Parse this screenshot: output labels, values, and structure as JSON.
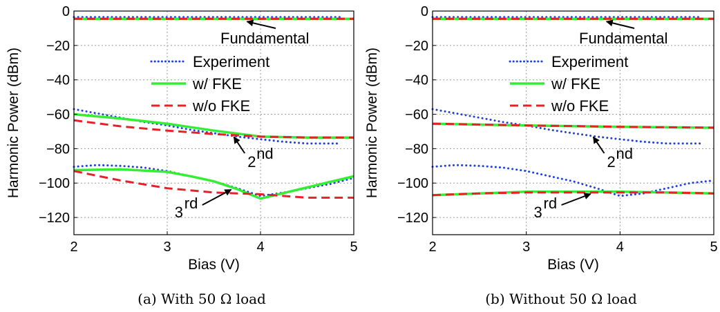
{
  "figure": {
    "panels": [
      {
        "caption": "(a) With 50 Ω load",
        "legend": [
          "Experiment",
          "w/ FKE",
          "w/o FKE"
        ],
        "annotations": {
          "fundamental": "Fundamental",
          "second": "2",
          "second_sup": "nd",
          "third": "3",
          "third_sup": "rd"
        }
      },
      {
        "caption": "(b) Without 50 Ω load",
        "legend": [
          "Experiment",
          "w/ FKE",
          "w/o FKE"
        ],
        "annotations": {
          "fundamental": "Fundamental",
          "second": "2",
          "second_sup": "nd",
          "third": "3",
          "third_sup": "rd"
        }
      }
    ]
  },
  "chart_data": [
    {
      "type": "line",
      "xlabel": "Bias (V)",
      "ylabel": "Harmonic Power (dBm)",
      "xlim": [
        2,
        5
      ],
      "ylim": [
        -130,
        0
      ],
      "xticks": [
        2,
        3,
        4,
        5
      ],
      "yticks": [
        0,
        -20,
        -40,
        -60,
        -80,
        -100,
        -120
      ],
      "ytick_labels": [
        "0",
        "−20",
        "−40",
        "−60",
        "−80",
        "−100",
        "−120"
      ],
      "grid": true,
      "legend_position": "upper-right",
      "series": [
        {
          "name": "Experiment",
          "group": "Fundamental",
          "style": "dotted",
          "color": "#1f3fe0",
          "x": [
            2,
            2.5,
            3,
            3.5,
            4,
            4.5,
            4.85
          ],
          "y": [
            -3.5,
            -3.5,
            -3.5,
            -3.5,
            -3.5,
            -3.5,
            -3.5
          ]
        },
        {
          "name": "w/ FKE",
          "group": "Fundamental",
          "style": "solid",
          "color": "#33ee33",
          "x": [
            2,
            5
          ],
          "y": [
            -4.5,
            -4.5
          ]
        },
        {
          "name": "w/o FKE",
          "group": "Fundamental",
          "style": "dashed",
          "color": "#e8202a",
          "x": [
            2,
            5
          ],
          "y": [
            -4.5,
            -4.5
          ]
        },
        {
          "name": "Experiment",
          "group": "2nd",
          "style": "dotted",
          "color": "#1f3fe0",
          "x": [
            2,
            2.25,
            2.5,
            2.75,
            3,
            3.25,
            3.5,
            3.75,
            4,
            4.25,
            4.5,
            4.85
          ],
          "y": [
            -57,
            -59.5,
            -62,
            -64.5,
            -66.5,
            -69,
            -71,
            -73,
            -74.5,
            -76,
            -77,
            -77
          ]
        },
        {
          "name": "w/ FKE",
          "group": "2nd",
          "style": "solid",
          "color": "#33ee33",
          "x": [
            2,
            2.5,
            3,
            3.5,
            4,
            4.5,
            5
          ],
          "y": [
            -60,
            -62.5,
            -65.5,
            -69.5,
            -73,
            -73.5,
            -73.5
          ]
        },
        {
          "name": "w/o FKE",
          "group": "2nd",
          "style": "dashed",
          "color": "#e8202a",
          "x": [
            2,
            2.5,
            3,
            3.5,
            4,
            4.5,
            5
          ],
          "y": [
            -63.5,
            -67,
            -69.5,
            -71.5,
            -73,
            -73.5,
            -73.5
          ]
        },
        {
          "name": "Experiment",
          "group": "3rd",
          "style": "dotted",
          "color": "#1f3fe0",
          "x": [
            2,
            2.25,
            2.5,
            2.75,
            3,
            3.25,
            3.5,
            3.75,
            4,
            4.25,
            4.5,
            4.75,
            5
          ],
          "y": [
            -90.5,
            -89.5,
            -90,
            -91,
            -93,
            -96,
            -99,
            -103,
            -107.5,
            -105.5,
            -103,
            -100.5,
            -97
          ]
        },
        {
          "name": "w/ FKE",
          "group": "3rd",
          "style": "solid",
          "color": "#33ee33",
          "x": [
            2,
            2.5,
            3,
            3.25,
            3.5,
            3.75,
            4,
            4.5,
            5
          ],
          "y": [
            -92.5,
            -92,
            -93.5,
            -96,
            -99,
            -103.5,
            -109,
            -102.5,
            -96
          ]
        },
        {
          "name": "w/o FKE",
          "group": "3rd",
          "style": "dashed",
          "color": "#e8202a",
          "x": [
            2,
            2.5,
            3,
            3.5,
            4,
            4.5,
            5
          ],
          "y": [
            -93,
            -98.5,
            -103,
            -105.5,
            -106.5,
            -108.5,
            -108.5
          ]
        }
      ]
    },
    {
      "type": "line",
      "xlabel": "Bias (V)",
      "ylabel": "Harmonic Power (dBm)",
      "xlim": [
        2,
        5
      ],
      "ylim": [
        -130,
        0
      ],
      "xticks": [
        2,
        3,
        4,
        5
      ],
      "yticks": [
        0,
        -20,
        -40,
        -60,
        -80,
        -100,
        -120
      ],
      "ytick_labels": [
        "0",
        "−20",
        "−40",
        "−60",
        "−80",
        "−100",
        "−120"
      ],
      "grid": true,
      "legend_position": "upper-right",
      "series": [
        {
          "name": "Experiment",
          "group": "Fundamental",
          "style": "dotted",
          "color": "#1f3fe0",
          "x": [
            2,
            2.5,
            3,
            3.5,
            4,
            4.5,
            4.85
          ],
          "y": [
            -3.5,
            -3.5,
            -3.5,
            -3.5,
            -3.5,
            -3.5,
            -3.5
          ]
        },
        {
          "name": "w/ FKE",
          "group": "Fundamental",
          "style": "solid",
          "color": "#33ee33",
          "x": [
            2,
            5
          ],
          "y": [
            -4.5,
            -4.5
          ]
        },
        {
          "name": "w/o FKE",
          "group": "Fundamental",
          "style": "dashed",
          "color": "#e8202a",
          "x": [
            2,
            5
          ],
          "y": [
            -4.5,
            -4.5
          ]
        },
        {
          "name": "Experiment",
          "group": "2nd",
          "style": "dotted",
          "color": "#1f3fe0",
          "x": [
            2,
            2.25,
            2.5,
            2.75,
            3,
            3.25,
            3.5,
            3.75,
            4,
            4.25,
            4.5,
            4.85
          ],
          "y": [
            -57,
            -59.5,
            -62,
            -64.5,
            -66.5,
            -69,
            -71,
            -73,
            -74.5,
            -76,
            -77,
            -77
          ]
        },
        {
          "name": "w/ FKE",
          "group": "2nd",
          "style": "solid",
          "color": "#33ee33",
          "x": [
            2,
            3,
            4,
            5
          ],
          "y": [
            -65.5,
            -66.5,
            -67.3,
            -67.8
          ]
        },
        {
          "name": "w/o FKE",
          "group": "2nd",
          "style": "dashed",
          "color": "#e8202a",
          "x": [
            2,
            3,
            4,
            5
          ],
          "y": [
            -65.5,
            -66.5,
            -67.3,
            -67.8
          ]
        },
        {
          "name": "Experiment",
          "group": "3rd",
          "style": "dotted",
          "color": "#1f3fe0",
          "x": [
            2,
            2.25,
            2.5,
            2.75,
            3,
            3.25,
            3.5,
            3.75,
            4,
            4.25,
            4.5,
            4.75,
            5
          ],
          "y": [
            -90.5,
            -89.5,
            -90,
            -91,
            -93,
            -96,
            -99,
            -103,
            -107.5,
            -106,
            -103,
            -100,
            -98.5
          ]
        },
        {
          "name": "w/ FKE",
          "group": "3rd",
          "style": "solid",
          "color": "#33ee33",
          "x": [
            2,
            2.5,
            3,
            3.5,
            4,
            4.5,
            5
          ],
          "y": [
            -107,
            -106,
            -105,
            -105,
            -105,
            -105.5,
            -106
          ]
        },
        {
          "name": "w/o FKE",
          "group": "3rd",
          "style": "dashed",
          "color": "#e8202a",
          "x": [
            2,
            2.5,
            3,
            3.5,
            4,
            4.5,
            5
          ],
          "y": [
            -107,
            -106,
            -105.5,
            -105.5,
            -105.5,
            -105.5,
            -106
          ]
        }
      ]
    }
  ]
}
